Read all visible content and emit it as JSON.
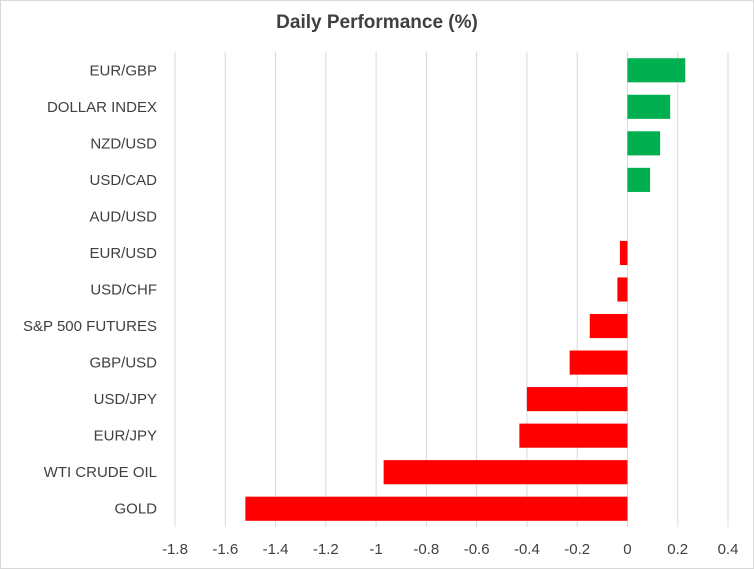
{
  "chart_data": {
    "type": "bar",
    "orientation": "horizontal",
    "title": "Daily Performance (%)",
    "xlabel": "",
    "ylabel": "",
    "categories": [
      "EUR/GBP",
      "DOLLAR INDEX",
      "NZD/USD",
      "USD/CAD",
      "AUD/USD",
      "EUR/USD",
      "USD/CHF",
      "S&P 500 FUTURES",
      "GBP/USD",
      "USD/JPY",
      "EUR/JPY",
      "WTI CRUDE OIL",
      "GOLD"
    ],
    "values": [
      0.23,
      0.17,
      0.13,
      0.09,
      0.0,
      -0.03,
      -0.04,
      -0.15,
      -0.23,
      -0.4,
      -0.43,
      -0.97,
      -1.52
    ],
    "xlim": [
      -1.8,
      0.4
    ],
    "xticks": [
      "-1.8",
      "-1.6",
      "-1.4",
      "-1.2",
      "-1",
      "-0.8",
      "-0.6",
      "-0.4",
      "-0.2",
      "0",
      "0.2",
      "0.4"
    ],
    "xtick_values": [
      -1.8,
      -1.6,
      -1.4,
      -1.2,
      -1.0,
      -0.8,
      -0.6,
      -0.4,
      -0.2,
      0,
      0.2,
      0.4
    ],
    "grid": "vertical",
    "colors": {
      "positive": "#00b050",
      "negative": "#ff0000",
      "grid": "#d9d9d9",
      "text": "#404040"
    }
  }
}
